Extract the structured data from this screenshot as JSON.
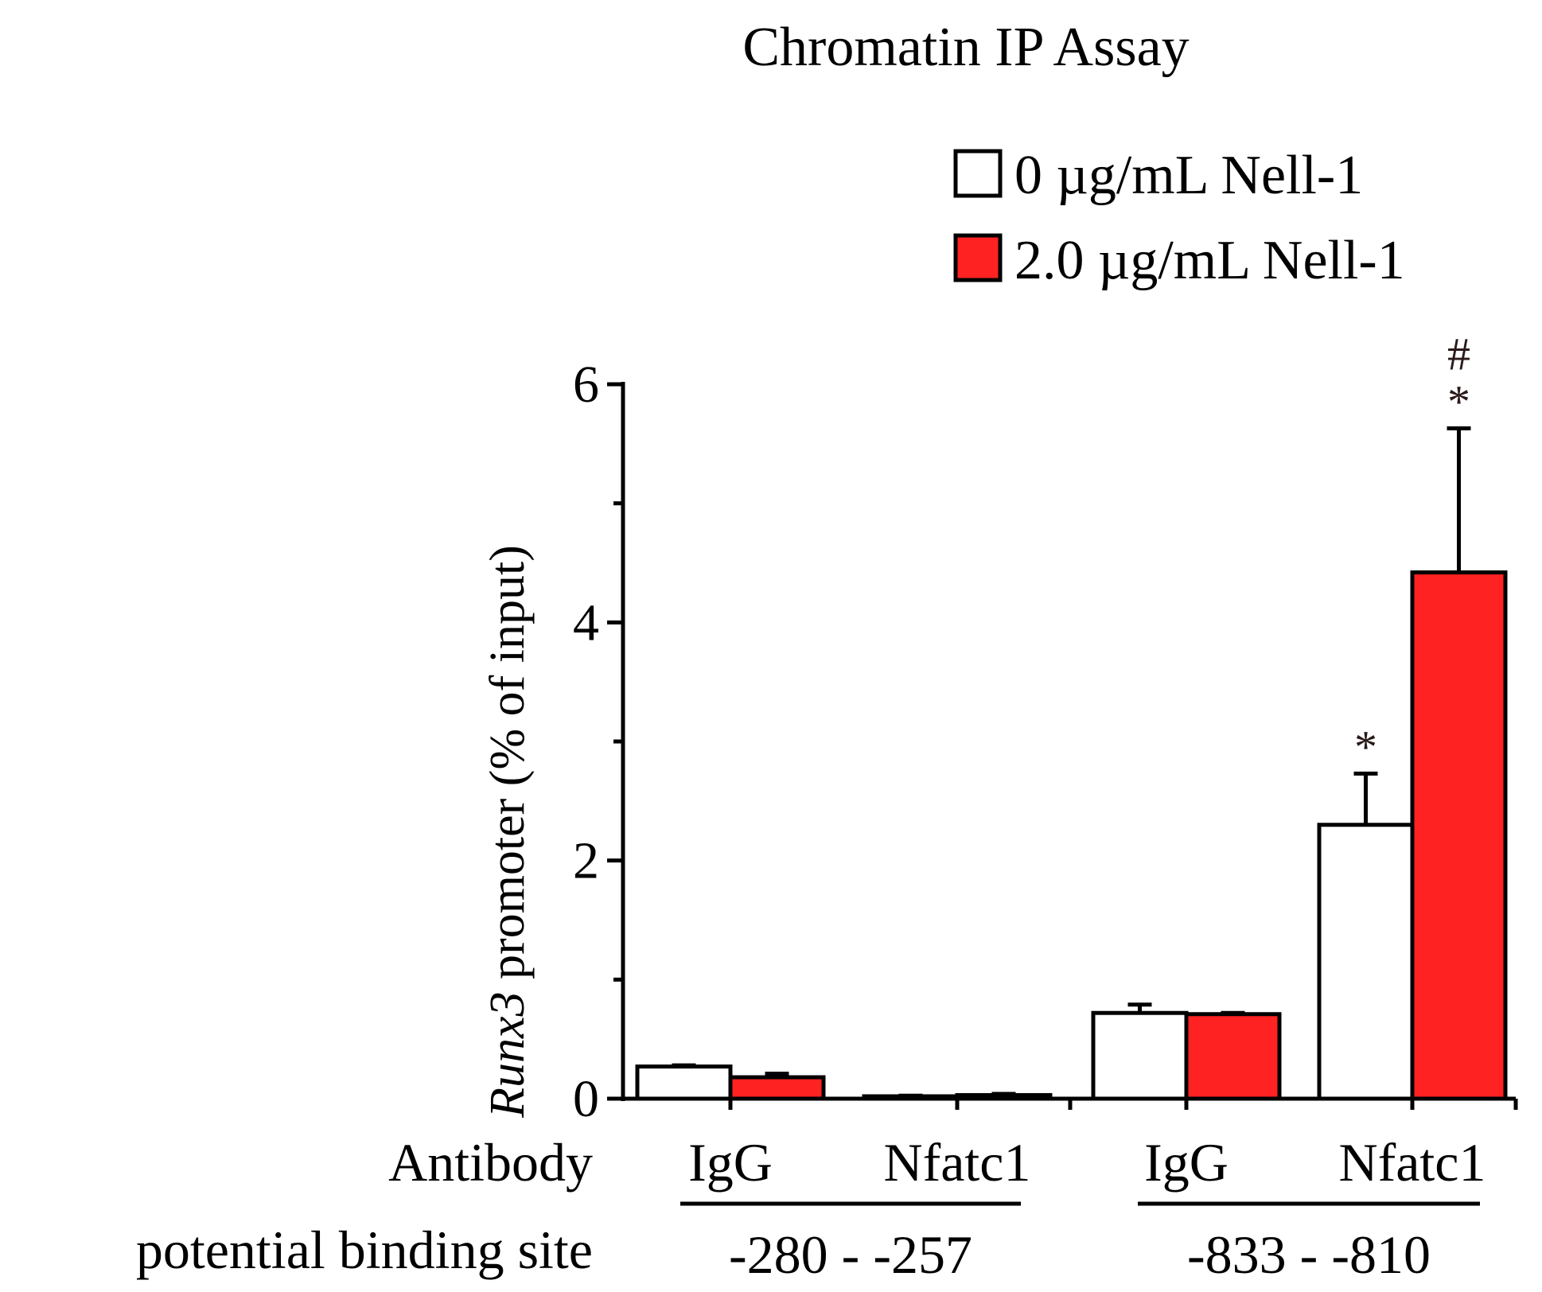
{
  "chart_data": {
    "type": "bar",
    "title": "Chromatin IP Assay",
    "ylabel_italic": "Runx3",
    "ylabel_rest": " promoter (% of input)",
    "ylim": [
      0,
      6
    ],
    "yticks": [
      0,
      2,
      4,
      6
    ],
    "row_label_antibody": "Antibody",
    "row_label_site": "potential binding site",
    "groups": [
      {
        "site": "-280 - -257",
        "categories": [
          {
            "antibody": "IgG",
            "values": [
              0.27,
              0.18
            ],
            "errors": [
              0.01,
              0.03
            ],
            "sig": [
              "",
              ""
            ]
          },
          {
            "antibody": "Nfatc1",
            "values": [
              0.02,
              0.03
            ],
            "errors": [
              0.005,
              0.01
            ],
            "sig": [
              "",
              ""
            ]
          }
        ]
      },
      {
        "site": "-833 - -810",
        "categories": [
          {
            "antibody": "IgG",
            "values": [
              0.72,
              0.71
            ],
            "errors": [
              0.07,
              0.01
            ],
            "sig": [
              "",
              ""
            ]
          },
          {
            "antibody": "Nfatc1",
            "values": [
              2.3,
              4.42
            ],
            "errors": [
              0.43,
              1.21
            ],
            "sig": [
              "*",
              "*"
            ],
            "extra_sig": [
              "",
              "#"
            ]
          }
        ]
      }
    ],
    "series": [
      {
        "name": "0 µg/mL Nell-1",
        "color": "#ffffff"
      },
      {
        "name": "2.0 µg/mL Nell-1",
        "color": "#ff2222"
      }
    ]
  }
}
